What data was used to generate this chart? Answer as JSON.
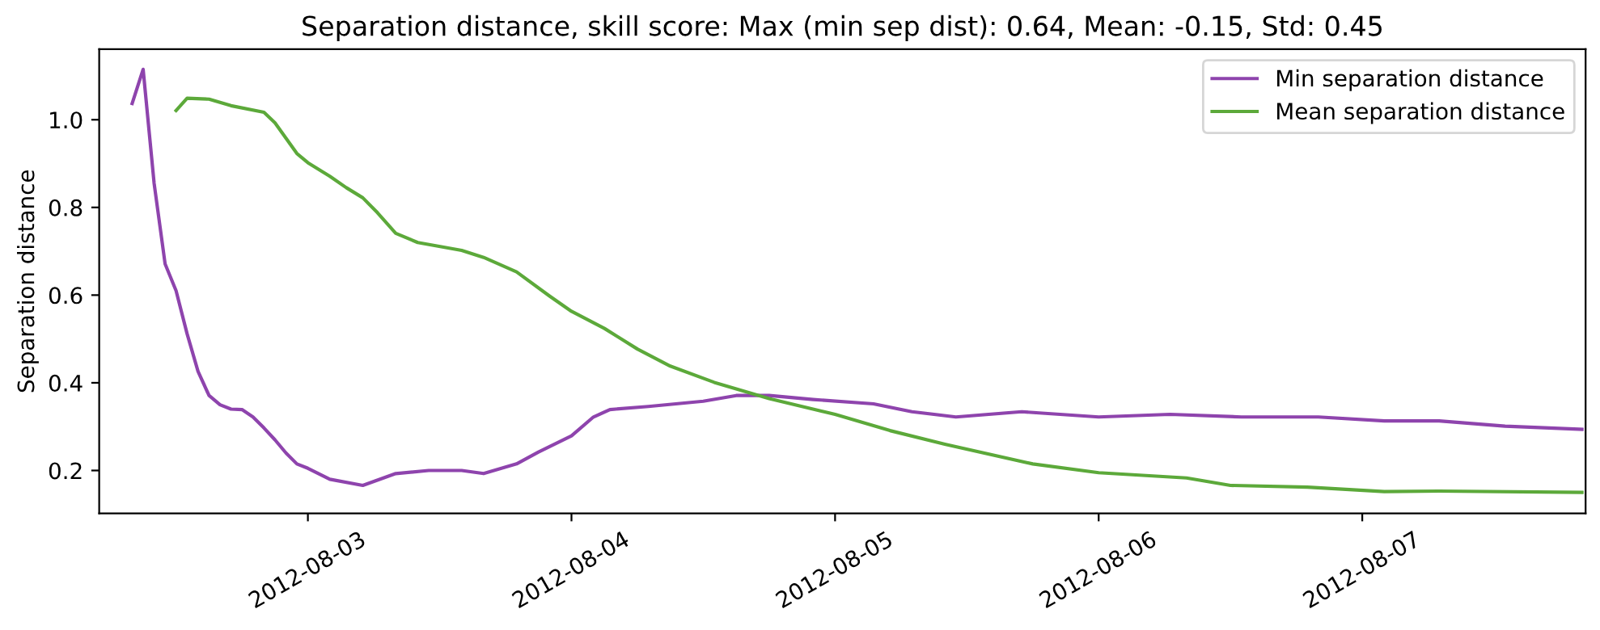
{
  "chart_data": {
    "type": "line",
    "title": "Separation distance, skill score: Max (min sep dist): 0.64, Mean: -0.15, Std: 0.45",
    "ylabel": "Separation distance",
    "xlim": [
      "2012-08-02T05:00",
      "2012-08-07T20:20"
    ],
    "ylim": [
      0.102,
      1.161
    ],
    "xticks": [
      "2012-08-03",
      "2012-08-04",
      "2012-08-05",
      "2012-08-06",
      "2012-08-07"
    ],
    "yticks": [
      0.2,
      0.4,
      0.6,
      0.8,
      {
        "value": 1,
        "label": "1.0"
      }
    ],
    "grid": false,
    "legend": "top right",
    "marker": "none",
    "line_style": "solid",
    "series": [
      {
        "name": "Min separation distance",
        "color": "#8e44ad",
        "x": [
          "2012-08-02T08:00",
          "2012-08-02T09:00",
          "2012-08-02T10:00",
          "2012-08-02T11:00",
          "2012-08-02T12:00",
          "2012-08-02T13:00",
          "2012-08-02T14:00",
          "2012-08-02T15:00",
          "2012-08-02T16:00",
          "2012-08-02T17:00",
          "2012-08-02T18:00",
          "2012-08-02T19:00",
          "2012-08-02T20:00",
          "2012-08-02T21:00",
          "2012-08-02T22:00",
          "2012-08-02T23:00",
          "2012-08-03T00:00",
          "2012-08-03T02:00",
          "2012-08-03T05:00",
          "2012-08-03T08:00",
          "2012-08-03T11:00",
          "2012-08-03T14:00",
          "2012-08-03T16:00",
          "2012-08-03T19:00",
          "2012-08-03T21:00",
          "2012-08-04T00:00",
          "2012-08-04T02:00",
          "2012-08-04T03:30",
          "2012-08-04T07:00",
          "2012-08-04T12:00",
          "2012-08-04T15:00",
          "2012-08-04T18:00",
          "2012-08-04T22:00",
          "2012-08-05T03:30",
          "2012-08-05T07:00",
          "2012-08-05T11:00",
          "2012-08-05T17:00",
          "2012-08-06T00:00",
          "2012-08-06T06:30",
          "2012-08-06T13:00",
          "2012-08-06T20:00",
          "2012-08-07T02:00",
          "2012-08-07T07:00",
          "2012-08-07T13:00",
          "2012-08-07T20:00"
        ],
        "values": [
          1.037,
          1.115,
          0.855,
          0.671,
          0.61,
          0.512,
          0.426,
          0.371,
          0.35,
          0.34,
          0.339,
          0.322,
          0.297,
          0.27,
          0.24,
          0.215,
          0.205,
          0.18,
          0.166,
          0.193,
          0.2,
          0.2,
          0.193,
          0.215,
          0.242,
          0.279,
          0.322,
          0.339,
          0.346,
          0.358,
          0.371,
          0.371,
          0.362,
          0.352,
          0.334,
          0.322,
          0.334,
          0.322,
          0.328,
          0.322,
          0.322,
          0.313,
          0.313,
          0.301,
          0.294
        ]
      },
      {
        "name": "Mean separation distance",
        "color": "#5ca93a",
        "x": [
          "2012-08-02T12:00",
          "2012-08-02T13:00",
          "2012-08-02T15:00",
          "2012-08-02T17:00",
          "2012-08-02T20:00",
          "2012-08-02T21:00",
          "2012-08-02T23:00",
          "2012-08-03T00:00",
          "2012-08-03T02:00",
          "2012-08-03T03:30",
          "2012-08-03T05:00",
          "2012-08-03T06:20",
          "2012-08-03T08:00",
          "2012-08-03T10:00",
          "2012-08-03T14:00",
          "2012-08-03T16:00",
          "2012-08-03T19:00",
          "2012-08-03T22:00",
          "2012-08-04T00:00",
          "2012-08-04T03:00",
          "2012-08-04T06:00",
          "2012-08-04T09:00",
          "2012-08-04T13:00",
          "2012-08-04T18:00",
          "2012-08-05T00:00",
          "2012-08-05T05:00",
          "2012-08-05T10:00",
          "2012-08-05T18:00",
          "2012-08-06T00:00",
          "2012-08-06T08:00",
          "2012-08-06T12:00",
          "2012-08-06T19:00",
          "2012-08-07T02:00",
          "2012-08-07T07:00",
          "2012-08-07T20:00"
        ],
        "values": [
          1.021,
          1.049,
          1.047,
          1.032,
          1.017,
          0.993,
          0.923,
          0.902,
          0.871,
          0.845,
          0.822,
          0.788,
          0.741,
          0.72,
          0.702,
          0.686,
          0.653,
          0.598,
          0.563,
          0.524,
          0.477,
          0.438,
          0.401,
          0.364,
          0.328,
          0.291,
          0.26,
          0.215,
          0.195,
          0.183,
          0.166,
          0.162,
          0.152,
          0.153,
          0.15
        ]
      }
    ]
  }
}
